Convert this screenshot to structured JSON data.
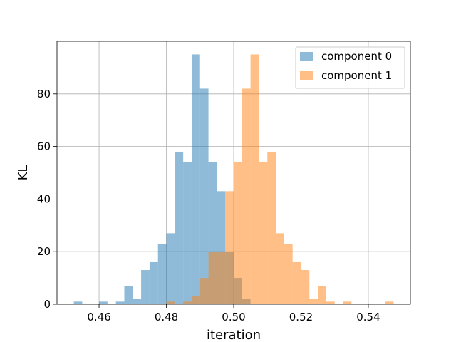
{
  "chart_data": {
    "type": "bar",
    "title": "",
    "xlabel": "iteration",
    "ylabel": "KL",
    "xlim": [
      0.4475,
      0.5525
    ],
    "ylim": [
      0,
      100
    ],
    "grid": true,
    "legend_position": "top-right",
    "bin_width": 0.0025,
    "x_ticks": [
      0.46,
      0.48,
      0.5,
      0.52,
      0.54
    ],
    "x_tick_labels": [
      "0.46",
      "0.48",
      "0.50",
      "0.52",
      "0.54"
    ],
    "y_ticks": [
      0,
      20,
      40,
      60,
      80
    ],
    "y_tick_labels": [
      "0",
      "20",
      "40",
      "60",
      "80"
    ],
    "series": [
      {
        "name": "component 0",
        "color": "#1f77b4",
        "alpha": 0.5,
        "bins": [
          {
            "x": 0.45,
            "count": 0
          },
          {
            "x": 0.4525,
            "count": 1
          },
          {
            "x": 0.4575,
            "count": 0
          },
          {
            "x": 0.46,
            "count": 1
          },
          {
            "x": 0.465,
            "count": 1
          },
          {
            "x": 0.4675,
            "count": 7
          },
          {
            "x": 0.47,
            "count": 2
          },
          {
            "x": 0.4725,
            "count": 13
          },
          {
            "x": 0.475,
            "count": 16
          },
          {
            "x": 0.4775,
            "count": 23
          },
          {
            "x": 0.48,
            "count": 27
          },
          {
            "x": 0.4825,
            "count": 58
          },
          {
            "x": 0.485,
            "count": 54
          },
          {
            "x": 0.4875,
            "count": 95
          },
          {
            "x": 0.49,
            "count": 82
          },
          {
            "x": 0.4925,
            "count": 54
          },
          {
            "x": 0.495,
            "count": 43
          },
          {
            "x": 0.4975,
            "count": 20
          },
          {
            "x": 0.5,
            "count": 10
          },
          {
            "x": 0.5025,
            "count": 2
          }
        ]
      },
      {
        "name": "component 1",
        "color": "#ff7f0e",
        "alpha": 0.5,
        "bins": [
          {
            "x": 0.48,
            "count": 1
          },
          {
            "x": 0.485,
            "count": 1
          },
          {
            "x": 0.4875,
            "count": 3
          },
          {
            "x": 0.49,
            "count": 10
          },
          {
            "x": 0.4925,
            "count": 20
          },
          {
            "x": 0.495,
            "count": 20
          },
          {
            "x": 0.4975,
            "count": 43
          },
          {
            "x": 0.5,
            "count": 54
          },
          {
            "x": 0.5025,
            "count": 82
          },
          {
            "x": 0.505,
            "count": 95
          },
          {
            "x": 0.5075,
            "count": 54
          },
          {
            "x": 0.51,
            "count": 58
          },
          {
            "x": 0.5125,
            "count": 27
          },
          {
            "x": 0.515,
            "count": 23
          },
          {
            "x": 0.5175,
            "count": 16
          },
          {
            "x": 0.52,
            "count": 13
          },
          {
            "x": 0.5225,
            "count": 2
          },
          {
            "x": 0.525,
            "count": 7
          },
          {
            "x": 0.5275,
            "count": 1
          },
          {
            "x": 0.5325,
            "count": 1
          },
          {
            "x": 0.545,
            "count": 1
          }
        ]
      }
    ]
  }
}
